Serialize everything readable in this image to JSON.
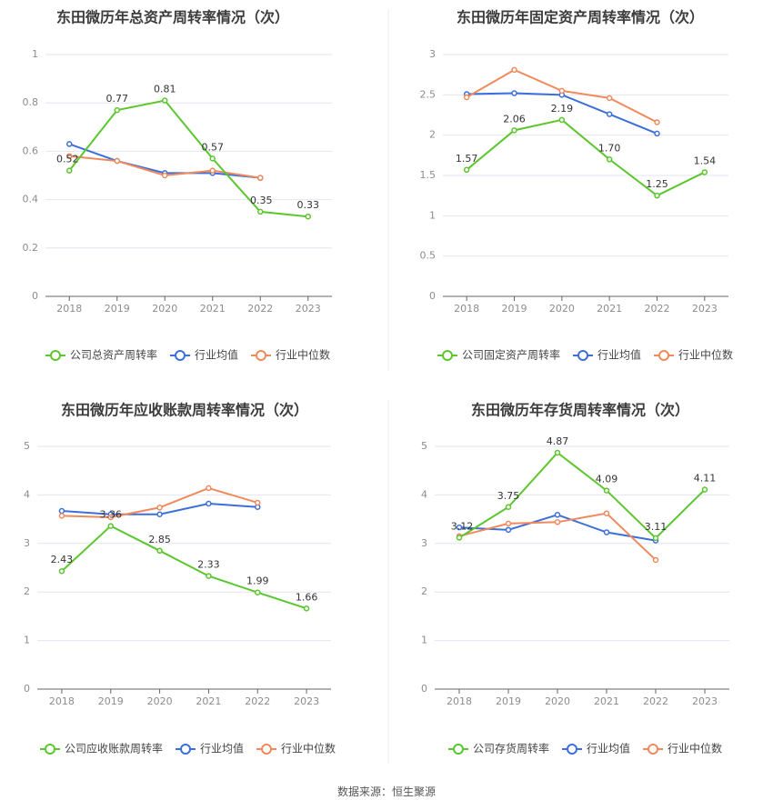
{
  "colors": {
    "company": "#5bc62d",
    "avg": "#3c6fd9",
    "median": "#f08a5d",
    "grid": "#e3e6ef",
    "axis": "#8c8c8c",
    "title": "#3c3c3c"
  },
  "legend": {
    "avg": "行业均值",
    "median": "行业中位数"
  },
  "footer": "数据来源：恒生聚源",
  "chart_data": [
    {
      "type": "line",
      "title": "东田微历年总资产周转率情况（次）",
      "categories": [
        "2018",
        "2019",
        "2020",
        "2021",
        "2022",
        "2023"
      ],
      "ylim": [
        0,
        1
      ],
      "yticks": [
        "0",
        "0.2",
        "0.4",
        "0.6",
        "0.8",
        "1"
      ],
      "series": [
        {
          "name": "公司总资产周转率",
          "role": "company",
          "values": [
            0.52,
            0.77,
            0.81,
            0.57,
            0.35,
            0.33
          ],
          "labels": [
            "0.52",
            "0.77",
            "0.81",
            "0.57",
            "0.35",
            "0.33"
          ]
        },
        {
          "name": "行业均值",
          "role": "avg",
          "values": [
            0.63,
            0.56,
            0.51,
            0.51,
            0.49,
            null
          ]
        },
        {
          "name": "行业中位数",
          "role": "median",
          "values": [
            0.58,
            0.56,
            0.5,
            0.52,
            0.49,
            null
          ]
        }
      ],
      "grid": true,
      "legend": "bottom"
    },
    {
      "type": "line",
      "title": "东田微历年固定资产周转率情况（次）",
      "categories": [
        "2018",
        "2019",
        "2020",
        "2021",
        "2022",
        "2023"
      ],
      "ylim": [
        0,
        3
      ],
      "yticks": [
        "0",
        "0.5",
        "1",
        "1.5",
        "2",
        "2.5",
        "3"
      ],
      "series": [
        {
          "name": "公司固定资产周转率",
          "role": "company",
          "values": [
            1.57,
            2.06,
            2.19,
            1.7,
            1.25,
            1.54
          ],
          "labels": [
            "1.57",
            "2.06",
            "2.19",
            "1.70",
            "1.25",
            "1.54"
          ]
        },
        {
          "name": "行业均值",
          "role": "avg",
          "values": [
            2.51,
            2.52,
            2.5,
            2.26,
            2.02,
            null
          ]
        },
        {
          "name": "行业中位数",
          "role": "median",
          "values": [
            2.47,
            2.81,
            2.55,
            2.46,
            2.16,
            null
          ]
        }
      ],
      "grid": true,
      "legend": "bottom"
    },
    {
      "type": "line",
      "title": "东田微历年应收账款周转率情况（次）",
      "categories": [
        "2018",
        "2019",
        "2020",
        "2021",
        "2022",
        "2023"
      ],
      "ylim": [
        0,
        5
      ],
      "yticks": [
        "0",
        "1",
        "2",
        "3",
        "4",
        "5"
      ],
      "series": [
        {
          "name": "公司应收账款周转率",
          "role": "company",
          "values": [
            2.43,
            3.36,
            2.85,
            2.33,
            1.99,
            1.66
          ],
          "labels": [
            "2.43",
            "3.36",
            "2.85",
            "2.33",
            "1.99",
            "1.66"
          ]
        },
        {
          "name": "行业均值",
          "role": "avg",
          "values": [
            3.67,
            3.6,
            3.6,
            3.82,
            3.75,
            null
          ]
        },
        {
          "name": "行业中位数",
          "role": "median",
          "values": [
            3.57,
            3.54,
            3.74,
            4.14,
            3.84,
            null
          ]
        }
      ],
      "grid": true,
      "legend": "bottom"
    },
    {
      "type": "line",
      "title": "东田微历年存货周转率情况（次）",
      "categories": [
        "2018",
        "2019",
        "2020",
        "2021",
        "2022",
        "2023"
      ],
      "ylim": [
        0,
        5
      ],
      "yticks": [
        "0",
        "1",
        "2",
        "3",
        "4",
        "5"
      ],
      "series": [
        {
          "name": "公司存货周转率",
          "role": "company",
          "values": [
            3.12,
            3.75,
            4.87,
            4.09,
            3.11,
            4.11
          ],
          "labels": [
            "3.12",
            "3.75",
            "4.87",
            "4.09",
            "3.11",
            "4.11"
          ]
        },
        {
          "name": "行业均值",
          "role": "avg",
          "values": [
            3.33,
            3.28,
            3.59,
            3.23,
            3.06,
            null
          ]
        },
        {
          "name": "行业中位数",
          "role": "median",
          "values": [
            3.15,
            3.41,
            3.44,
            3.62,
            2.66,
            null
          ]
        }
      ],
      "grid": true,
      "legend": "bottom"
    }
  ]
}
